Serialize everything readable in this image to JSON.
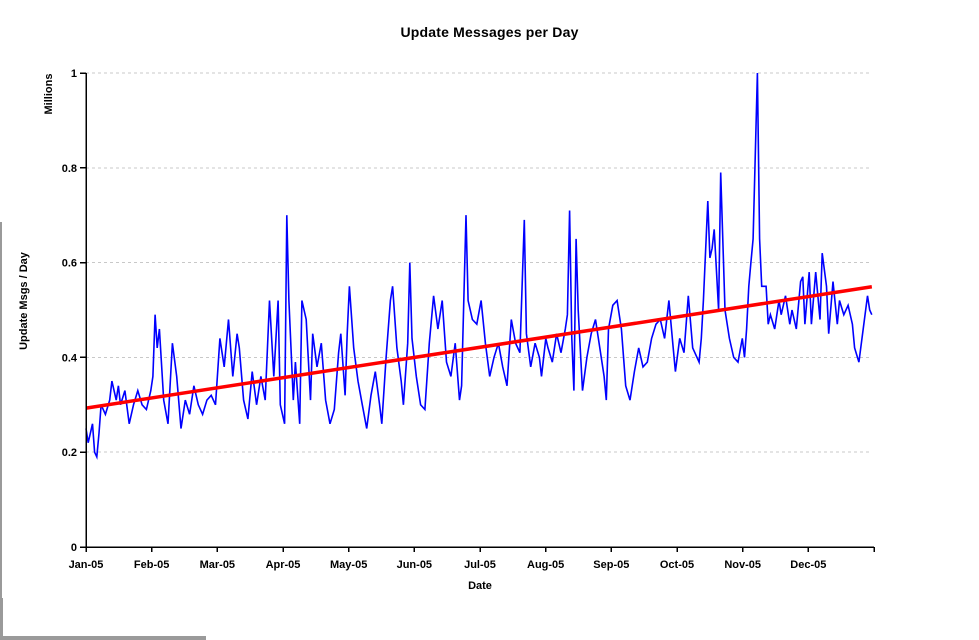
{
  "chart_data": {
    "type": "line",
    "title": "Update Messages per Day",
    "xlabel": "Date",
    "ylabel": "Update Msgs / Day",
    "y_unit_label": "Millions",
    "ylim": [
      0,
      1
    ],
    "x_days": [
      0,
      365
    ],
    "y_ticks": [
      0,
      0.2,
      0.4,
      0.6,
      0.8,
      1
    ],
    "y_tick_labels": [
      "0",
      "0.2",
      "0.4",
      "0.6",
      "0.8",
      "1"
    ],
    "x_tick_labels": [
      "Jan-05",
      "Feb-05",
      "Mar-05",
      "Apr-05",
      "May-05",
      "Jun-05",
      "Jul-05",
      "Aug-05",
      "Sep-05",
      "Oct-05",
      "Nov-05",
      "Dec-05"
    ],
    "grid": "horizontal-dashed",
    "legend": "none",
    "series": [
      {
        "name": "Update Msgs per Day (daily)",
        "type": "line",
        "color": "#0000ff",
        "x_unit": "day-of-year-2005",
        "points": [
          [
            0,
            0.25
          ],
          [
            1,
            0.22
          ],
          [
            3,
            0.26
          ],
          [
            4,
            0.2
          ],
          [
            5,
            0.19
          ],
          [
            6,
            0.24
          ],
          [
            7,
            0.3
          ],
          [
            9,
            0.28
          ],
          [
            11,
            0.31
          ],
          [
            12,
            0.35
          ],
          [
            14,
            0.31
          ],
          [
            15,
            0.34
          ],
          [
            16,
            0.3
          ],
          [
            18,
            0.33
          ],
          [
            20,
            0.26
          ],
          [
            22,
            0.3
          ],
          [
            24,
            0.33
          ],
          [
            26,
            0.3
          ],
          [
            28,
            0.29
          ],
          [
            30,
            0.33
          ],
          [
            31,
            0.36
          ],
          [
            32,
            0.49
          ],
          [
            33,
            0.42
          ],
          [
            34,
            0.46
          ],
          [
            36,
            0.31
          ],
          [
            38,
            0.26
          ],
          [
            40,
            0.43
          ],
          [
            42,
            0.36
          ],
          [
            44,
            0.25
          ],
          [
            46,
            0.31
          ],
          [
            48,
            0.28
          ],
          [
            50,
            0.34
          ],
          [
            52,
            0.3
          ],
          [
            54,
            0.28
          ],
          [
            56,
            0.31
          ],
          [
            58,
            0.32
          ],
          [
            60,
            0.3
          ],
          [
            62,
            0.44
          ],
          [
            64,
            0.38
          ],
          [
            66,
            0.48
          ],
          [
            68,
            0.36
          ],
          [
            70,
            0.45
          ],
          [
            71,
            0.42
          ],
          [
            73,
            0.31
          ],
          [
            75,
            0.27
          ],
          [
            77,
            0.37
          ],
          [
            79,
            0.3
          ],
          [
            81,
            0.36
          ],
          [
            83,
            0.31
          ],
          [
            85,
            0.52
          ],
          [
            87,
            0.36
          ],
          [
            89,
            0.52
          ],
          [
            90,
            0.3
          ],
          [
            92,
            0.26
          ],
          [
            93,
            0.7
          ],
          [
            94,
            0.52
          ],
          [
            96,
            0.31
          ],
          [
            97,
            0.39
          ],
          [
            99,
            0.26
          ],
          [
            100,
            0.52
          ],
          [
            102,
            0.48
          ],
          [
            104,
            0.31
          ],
          [
            105,
            0.45
          ],
          [
            107,
            0.38
          ],
          [
            109,
            0.43
          ],
          [
            111,
            0.31
          ],
          [
            113,
            0.26
          ],
          [
            115,
            0.29
          ],
          [
            117,
            0.41
          ],
          [
            118,
            0.45
          ],
          [
            120,
            0.32
          ],
          [
            121,
            0.45
          ],
          [
            122,
            0.55
          ],
          [
            124,
            0.42
          ],
          [
            126,
            0.35
          ],
          [
            128,
            0.3
          ],
          [
            130,
            0.25
          ],
          [
            132,
            0.32
          ],
          [
            134,
            0.37
          ],
          [
            136,
            0.3
          ],
          [
            137,
            0.26
          ],
          [
            139,
            0.4
          ],
          [
            141,
            0.52
          ],
          [
            142,
            0.55
          ],
          [
            144,
            0.42
          ],
          [
            146,
            0.35
          ],
          [
            147,
            0.3
          ],
          [
            149,
            0.43
          ],
          [
            150,
            0.6
          ],
          [
            151,
            0.44
          ],
          [
            153,
            0.36
          ],
          [
            155,
            0.3
          ],
          [
            157,
            0.29
          ],
          [
            159,
            0.43
          ],
          [
            161,
            0.53
          ],
          [
            163,
            0.46
          ],
          [
            165,
            0.52
          ],
          [
            167,
            0.39
          ],
          [
            169,
            0.36
          ],
          [
            171,
            0.43
          ],
          [
            173,
            0.31
          ],
          [
            174,
            0.34
          ],
          [
            176,
            0.7
          ],
          [
            177,
            0.52
          ],
          [
            179,
            0.48
          ],
          [
            181,
            0.47
          ],
          [
            183,
            0.52
          ],
          [
            185,
            0.43
          ],
          [
            187,
            0.36
          ],
          [
            189,
            0.4
          ],
          [
            191,
            0.43
          ],
          [
            193,
            0.38
          ],
          [
            195,
            0.34
          ],
          [
            197,
            0.48
          ],
          [
            199,
            0.43
          ],
          [
            201,
            0.41
          ],
          [
            203,
            0.69
          ],
          [
            204,
            0.45
          ],
          [
            206,
            0.38
          ],
          [
            208,
            0.43
          ],
          [
            210,
            0.4
          ],
          [
            211,
            0.36
          ],
          [
            213,
            0.44
          ],
          [
            214,
            0.42
          ],
          [
            216,
            0.39
          ],
          [
            218,
            0.45
          ],
          [
            220,
            0.41
          ],
          [
            222,
            0.46
          ],
          [
            223,
            0.49
          ],
          [
            224,
            0.71
          ],
          [
            225,
            0.44
          ],
          [
            226,
            0.33
          ],
          [
            227,
            0.65
          ],
          [
            228,
            0.5
          ],
          [
            230,
            0.33
          ],
          [
            232,
            0.4
          ],
          [
            234,
            0.45
          ],
          [
            236,
            0.48
          ],
          [
            238,
            0.42
          ],
          [
            240,
            0.36
          ],
          [
            241,
            0.31
          ],
          [
            242,
            0.46
          ],
          [
            244,
            0.51
          ],
          [
            246,
            0.52
          ],
          [
            248,
            0.46
          ],
          [
            250,
            0.34
          ],
          [
            252,
            0.31
          ],
          [
            254,
            0.37
          ],
          [
            256,
            0.42
          ],
          [
            258,
            0.38
          ],
          [
            260,
            0.39
          ],
          [
            262,
            0.44
          ],
          [
            264,
            0.47
          ],
          [
            266,
            0.48
          ],
          [
            268,
            0.44
          ],
          [
            270,
            0.52
          ],
          [
            272,
            0.42
          ],
          [
            273,
            0.37
          ],
          [
            275,
            0.44
          ],
          [
            277,
            0.41
          ],
          [
            279,
            0.53
          ],
          [
            281,
            0.42
          ],
          [
            283,
            0.4
          ],
          [
            284,
            0.39
          ],
          [
            285,
            0.44
          ],
          [
            286,
            0.52
          ],
          [
            288,
            0.73
          ],
          [
            289,
            0.61
          ],
          [
            290,
            0.63
          ],
          [
            291,
            0.67
          ],
          [
            293,
            0.5
          ],
          [
            294,
            0.79
          ],
          [
            296,
            0.5
          ],
          [
            298,
            0.44
          ],
          [
            300,
            0.4
          ],
          [
            302,
            0.39
          ],
          [
            304,
            0.44
          ],
          [
            305,
            0.4
          ],
          [
            306,
            0.46
          ],
          [
            307,
            0.55
          ],
          [
            308,
            0.6
          ],
          [
            309,
            0.65
          ],
          [
            311,
            1.0
          ],
          [
            312,
            0.65
          ],
          [
            313,
            0.55
          ],
          [
            315,
            0.55
          ],
          [
            316,
            0.47
          ],
          [
            317,
            0.49
          ],
          [
            319,
            0.46
          ],
          [
            321,
            0.52
          ],
          [
            322,
            0.49
          ],
          [
            324,
            0.53
          ],
          [
            326,
            0.47
          ],
          [
            327,
            0.5
          ],
          [
            329,
            0.46
          ],
          [
            331,
            0.56
          ],
          [
            332,
            0.57
          ],
          [
            333,
            0.47
          ],
          [
            335,
            0.58
          ],
          [
            336,
            0.47
          ],
          [
            338,
            0.58
          ],
          [
            340,
            0.48
          ],
          [
            341,
            0.62
          ],
          [
            343,
            0.55
          ],
          [
            344,
            0.45
          ],
          [
            346,
            0.56
          ],
          [
            348,
            0.47
          ],
          [
            349,
            0.52
          ],
          [
            351,
            0.49
          ],
          [
            353,
            0.51
          ],
          [
            355,
            0.47
          ],
          [
            356,
            0.42
          ],
          [
            358,
            0.39
          ],
          [
            360,
            0.46
          ],
          [
            362,
            0.53
          ],
          [
            363,
            0.5
          ],
          [
            364,
            0.49
          ]
        ]
      },
      {
        "name": "Linear trendline",
        "type": "trendline",
        "color": "#ff0000",
        "points": [
          [
            0,
            0.293
          ],
          [
            364,
            0.549
          ]
        ]
      }
    ]
  },
  "colors": {
    "background": "#ffffff",
    "grid": "#c8c8c8",
    "axis": "#000000",
    "text": "#000000",
    "daily_line": "#0000ff",
    "trend_line": "#ff0000",
    "edge_artifact": "#9a9a9a"
  }
}
